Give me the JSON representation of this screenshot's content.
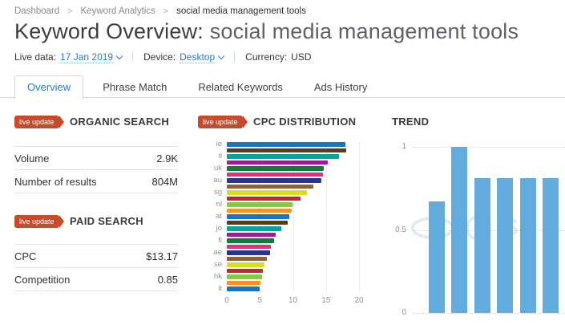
{
  "breadcrumb": {
    "items": [
      "Dashboard",
      "Keyword Analytics",
      "social media management tools"
    ],
    "separator": ">"
  },
  "header": {
    "title_label": "Keyword Overview:",
    "title_keyword": "social media management tools"
  },
  "meta": {
    "live_data_label": "Live data:",
    "live_data_value": "17 Jan 2019",
    "device_label": "Device:",
    "device_value": "Desktop",
    "currency_label": "Currency:",
    "currency_value": "USD"
  },
  "tabs": {
    "items": [
      {
        "label": "Overview",
        "active": true
      },
      {
        "label": "Phrase Match",
        "active": false
      },
      {
        "label": "Related Keywords",
        "active": false
      },
      {
        "label": "Ads History",
        "active": false
      }
    ]
  },
  "badges": {
    "live_update": "live update",
    "color": "#c74b28"
  },
  "organic": {
    "title": "ORGANIC SEARCH",
    "rows": [
      {
        "label": "Volume",
        "value": "2.9K"
      },
      {
        "label": "Number of results",
        "value": "804M"
      }
    ]
  },
  "paid": {
    "title": "PAID SEARCH",
    "rows": [
      {
        "label": "CPC",
        "value": "$13.17"
      },
      {
        "label": "Competition",
        "value": "0.85"
      }
    ]
  },
  "colors": {
    "accent_blue": "#2a7cc0",
    "badge_red": "#c74b28",
    "trend_bar_blue": "#61abde",
    "axis_gray": "#8f9295"
  },
  "watermark": {
    "text": "SE",
    "tagline": "C O   E"
  },
  "chart_data": [
    {
      "type": "bar",
      "orientation": "horizontal",
      "title": "CPC DISTRIBUTION",
      "categories": [
        "ie",
        "",
        "il",
        "",
        "uk",
        "",
        "au",
        "",
        "sg",
        "",
        "nl",
        "",
        "at",
        "",
        "jo",
        "",
        "fi",
        "",
        "ae",
        "",
        "se",
        "",
        "hk",
        "",
        "it"
      ],
      "values": [
        17.9,
        18.0,
        17.0,
        15.3,
        14.7,
        14.5,
        14.3,
        13.1,
        12.1,
        11.1,
        9.9,
        9.8,
        9.4,
        9.2,
        8.3,
        7.4,
        7.1,
        6.7,
        6.5,
        6.1,
        5.7,
        5.4,
        5.3,
        5.1,
        5.0
      ],
      "xlim": [
        0,
        20
      ],
      "x_ticks": [
        0,
        5,
        10,
        15,
        20
      ],
      "grid": "vertical-dotted",
      "bar_palette": [
        "#1b75bc",
        "#5e3a18",
        "#00a79c",
        "#9c1e94",
        "#0e7a3d",
        "#ee2a7b",
        "#2e3192",
        "#8c6239",
        "#d7df23",
        "#c1272d",
        "#8dc63f",
        "#f7941e"
      ]
    },
    {
      "type": "bar",
      "orientation": "vertical",
      "title": "TREND",
      "values": [
        0.67,
        1,
        0.81,
        0.81,
        0.81,
        0.81
      ],
      "ylim": [
        0,
        1
      ],
      "y_ticks": [
        1,
        0.5,
        0
      ],
      "grid": "horizontal-dotted",
      "bar_color": "#61abde",
      "legend": "none"
    }
  ]
}
